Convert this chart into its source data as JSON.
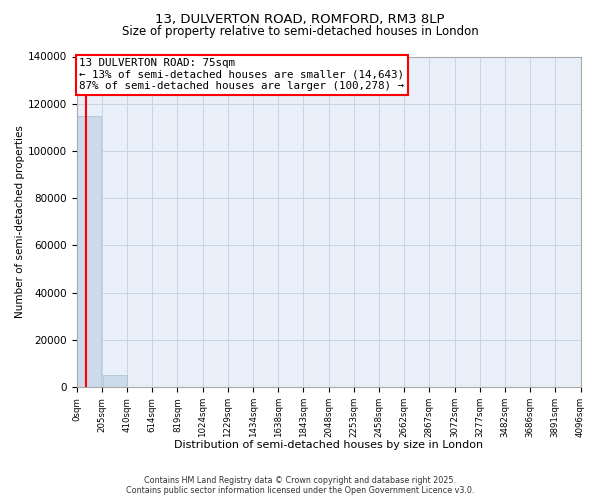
{
  "title_line1": "13, DULVERTON ROAD, ROMFORD, RM3 8LP",
  "title_line2": "Size of property relative to semi-detached houses in London",
  "xlabel": "Distribution of semi-detached houses by size in London",
  "ylabel": "Number of semi-detached properties",
  "property_size": 75,
  "property_label": "13 DULVERTON ROAD: 75sqm",
  "annotation_smaller": "← 13% of semi-detached houses are smaller (14,643)",
  "annotation_larger": "87% of semi-detached houses are larger (100,278) →",
  "bar_color": "#ccdaeb",
  "bar_edgecolor": "#a8becc",
  "vline_color": "red",
  "annotation_box_edgecolor": "red",
  "background_color": "#ffffff",
  "plot_bg_color": "#e8eff8",
  "grid_color": "#c8d4e0",
  "bin_edges": [
    0,
    205,
    410,
    614,
    819,
    1024,
    1229,
    1434,
    1638,
    1843,
    2048,
    2253,
    2458,
    2662,
    2867,
    3072,
    3277,
    3482,
    3686,
    3891,
    4096
  ],
  "bin_labels": [
    "0sqm",
    "205sqm",
    "410sqm",
    "614sqm",
    "819sqm",
    "1024sqm",
    "1229sqm",
    "1434sqm",
    "1638sqm",
    "1843sqm",
    "2048sqm",
    "2253sqm",
    "2458sqm",
    "2662sqm",
    "2867sqm",
    "3072sqm",
    "3277sqm",
    "3482sqm",
    "3686sqm",
    "3891sqm",
    "4096sqm"
  ],
  "bar_heights": [
    114921,
    5200,
    80,
    15,
    8,
    4,
    2,
    1,
    1,
    0,
    0,
    0,
    0,
    0,
    0,
    0,
    0,
    0,
    0,
    0
  ],
  "ylim": [
    0,
    140000
  ],
  "yticks": [
    0,
    20000,
    40000,
    60000,
    80000,
    100000,
    120000,
    140000
  ],
  "footnote_line1": "Contains HM Land Registry data © Crown copyright and database right 2025.",
  "footnote_line2": "Contains public sector information licensed under the Open Government Licence v3.0."
}
